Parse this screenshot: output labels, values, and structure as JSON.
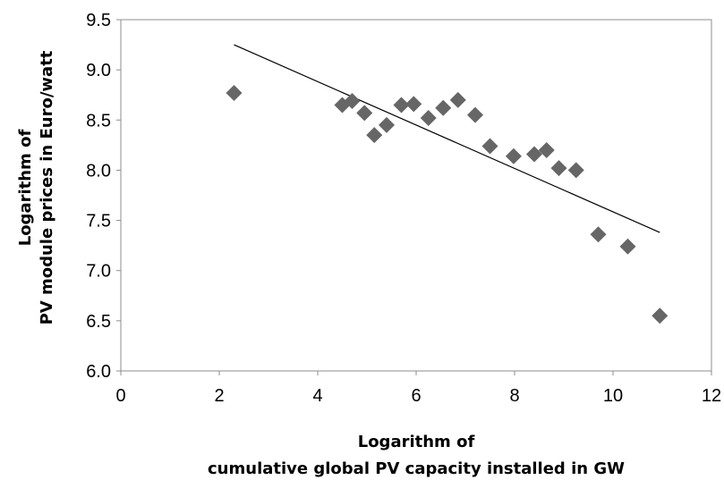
{
  "chart_data": {
    "type": "scatter",
    "xlabel": [
      "Logarithm of",
      "cumulative global PV capacity installed in GW"
    ],
    "ylabel": [
      "Logarithm of",
      "PV module prices in Euro/watt"
    ],
    "xlim": [
      0,
      12
    ],
    "ylim": [
      6.0,
      9.5
    ],
    "x_ticks": [
      "0",
      "2",
      "4",
      "6",
      "8",
      "10",
      "12"
    ],
    "y_ticks": [
      "6.0",
      "6.5",
      "7.0",
      "7.5",
      "8.0",
      "8.5",
      "9.0",
      "9.5"
    ],
    "grid": false,
    "legend": "none",
    "marker": "diamond",
    "marker_color": "#666666",
    "trendline_color": "#000000",
    "points": [
      {
        "x": 2.3,
        "y": 8.77
      },
      {
        "x": 4.5,
        "y": 8.65
      },
      {
        "x": 4.7,
        "y": 8.69
      },
      {
        "x": 4.95,
        "y": 8.57
      },
      {
        "x": 5.15,
        "y": 8.35
      },
      {
        "x": 5.4,
        "y": 8.45
      },
      {
        "x": 5.7,
        "y": 8.65
      },
      {
        "x": 5.95,
        "y": 8.66
      },
      {
        "x": 6.25,
        "y": 8.52
      },
      {
        "x": 6.55,
        "y": 8.62
      },
      {
        "x": 6.85,
        "y": 8.7
      },
      {
        "x": 7.2,
        "y": 8.55
      },
      {
        "x": 7.5,
        "y": 8.24
      },
      {
        "x": 7.98,
        "y": 8.14
      },
      {
        "x": 8.4,
        "y": 8.16
      },
      {
        "x": 8.65,
        "y": 8.2
      },
      {
        "x": 8.9,
        "y": 8.02
      },
      {
        "x": 9.25,
        "y": 8.0
      },
      {
        "x": 9.7,
        "y": 7.36
      },
      {
        "x": 10.3,
        "y": 7.24
      },
      {
        "x": 10.95,
        "y": 6.55
      }
    ],
    "trendline": {
      "x": [
        2.3,
        10.95
      ],
      "y": [
        9.25,
        7.38
      ]
    }
  }
}
